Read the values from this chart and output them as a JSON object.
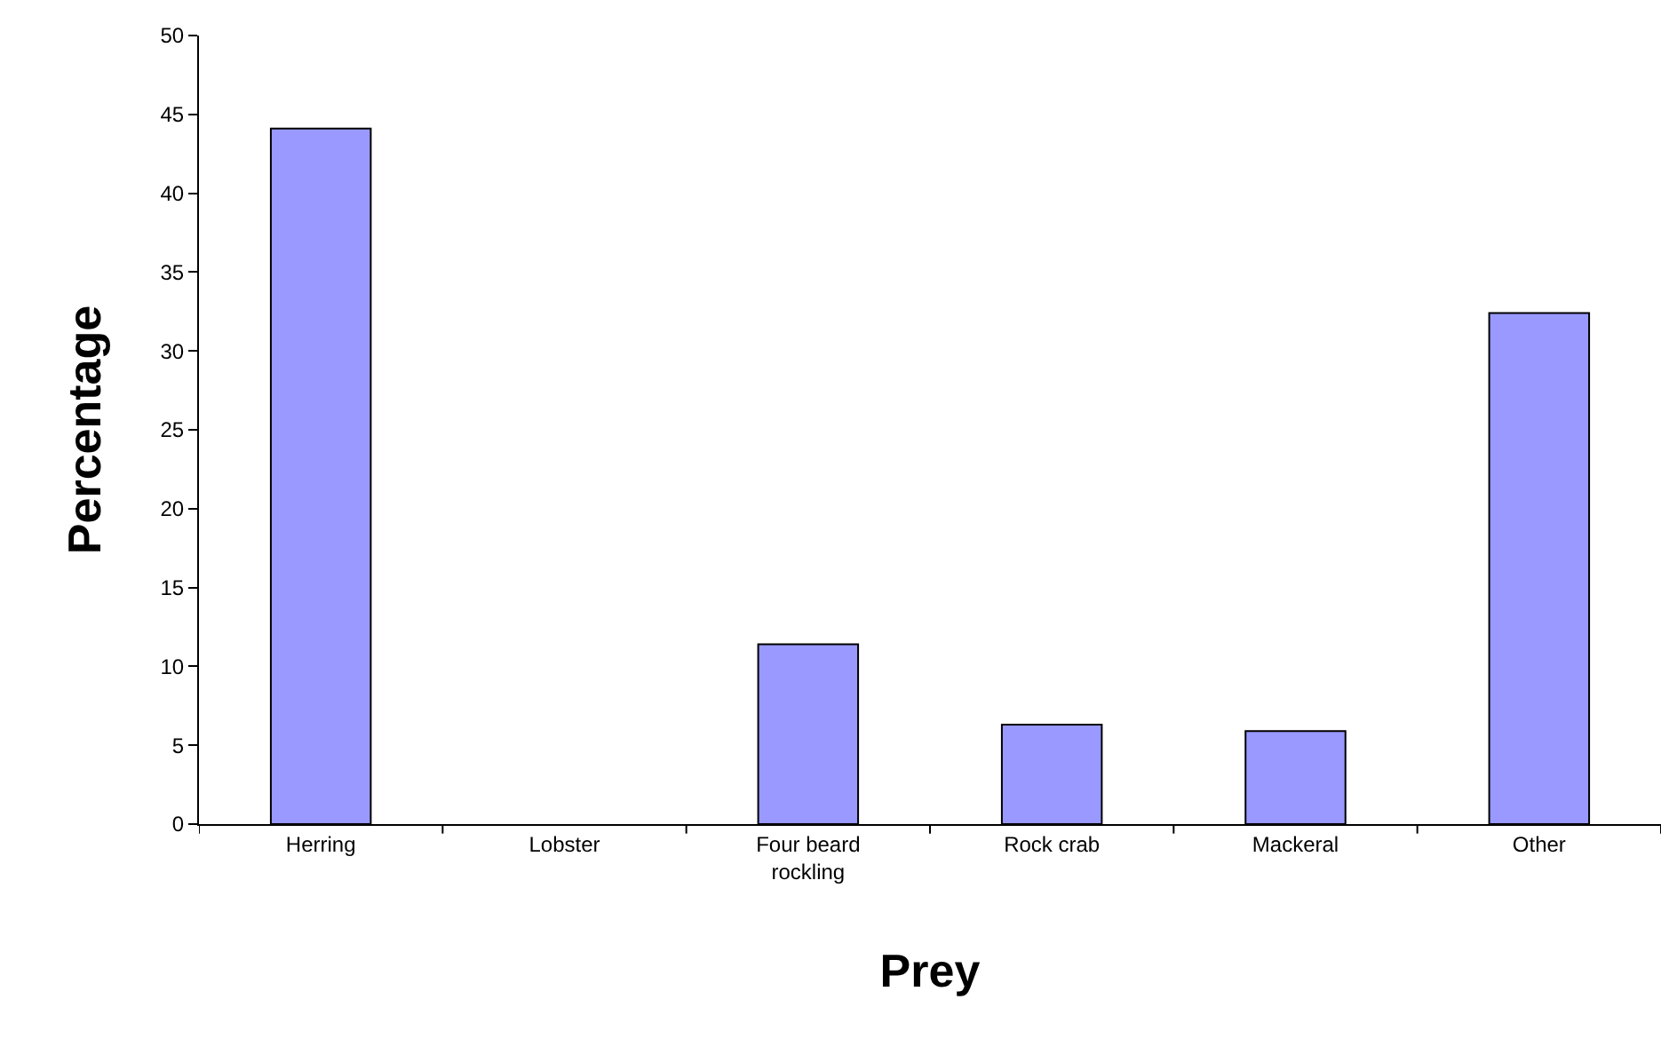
{
  "chart_data": {
    "type": "bar",
    "xlabel": "Prey",
    "ylabel": "Percentage",
    "categories": [
      "Herring",
      "Lobster",
      "Four beard rockling",
      "Rock crab",
      "Mackeral",
      "Other"
    ],
    "values": [
      44.1,
      0,
      11.4,
      6.3,
      5.9,
      32.4
    ],
    "color": "#9999ff",
    "ylim": [
      0,
      50
    ],
    "yticks": [
      0,
      5,
      10,
      15,
      20,
      25,
      30,
      35,
      40,
      45,
      50
    ],
    "legend": false
  }
}
